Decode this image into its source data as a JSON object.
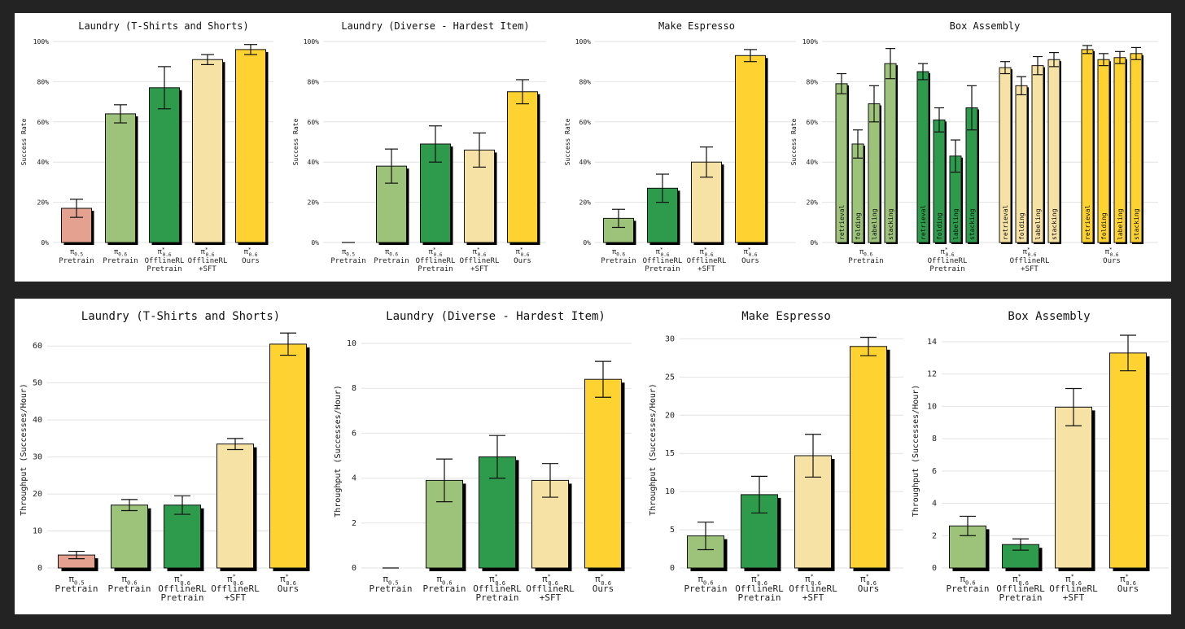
{
  "colors": {
    "pi05_pretrain": "#e4a190",
    "pi06_pretrain": "#9dc27a",
    "offline_rl_pretrain": "#2e9a4c",
    "offline_rl_sft": "#f7e2a5",
    "ours": "#fdd231"
  },
  "chart_data": [
    {
      "type": "bar",
      "title": "Laundry (T-Shirts and Shorts)",
      "ylabel": "Success Rate",
      "ylim": [
        0,
        100
      ],
      "yticks": [
        "0%",
        "20%",
        "40%",
        "60%",
        "80%",
        "100%"
      ],
      "grid": true,
      "bars": [
        {
          "label": "Pretrain",
          "model": "π0.5",
          "value": 17,
          "err": 4.5,
          "color": "pi05_pretrain"
        },
        {
          "label": "Pretrain",
          "model": "π0.6",
          "value": 64,
          "err": 4.5,
          "color": "pi06_pretrain"
        },
        {
          "label": "OfflineRL Pretrain",
          "model": "π*0.6",
          "value": 77,
          "err": 10.5,
          "color": "offline_rl_pretrain"
        },
        {
          "label": "OfflineRL +SFT",
          "model": "π*0.6",
          "value": 91,
          "err": 2.5,
          "color": "offline_rl_sft"
        },
        {
          "label": "Ours",
          "model": "π*0.6",
          "value": 96,
          "err": 2.5,
          "color": "ours"
        }
      ]
    },
    {
      "type": "bar",
      "title": "Laundry (Diverse - Hardest Item)",
      "ylabel": "Success Rate",
      "ylim": [
        0,
        100
      ],
      "yticks": [
        "0%",
        "20%",
        "40%",
        "60%",
        "80%",
        "100%"
      ],
      "grid": true,
      "bars": [
        {
          "label": "Pretrain",
          "model": "π0.5",
          "value": 0,
          "err": 0,
          "color": "pi05_pretrain"
        },
        {
          "label": "Pretrain",
          "model": "π0.6",
          "value": 38,
          "err": 8.5,
          "color": "pi06_pretrain"
        },
        {
          "label": "OfflineRL Pretrain",
          "model": "π*0.6",
          "value": 49,
          "err": 9,
          "color": "offline_rl_pretrain"
        },
        {
          "label": "OfflineRL +SFT",
          "model": "π*0.6",
          "value": 46,
          "err": 8.5,
          "color": "offline_rl_sft"
        },
        {
          "label": "Ours",
          "model": "π*0.6",
          "value": 75,
          "err": 6,
          "color": "ours"
        }
      ]
    },
    {
      "type": "bar",
      "title": "Make Espresso",
      "ylabel": "Success Rate",
      "ylim": [
        0,
        100
      ],
      "yticks": [
        "0%",
        "20%",
        "40%",
        "60%",
        "80%",
        "100%"
      ],
      "grid": true,
      "bars": [
        {
          "label": "Pretrain",
          "model": "π0.6",
          "value": 12,
          "err": 4.5,
          "color": "pi06_pretrain"
        },
        {
          "label": "OfflineRL Pretrain",
          "model": "π*0.6",
          "value": 27,
          "err": 7,
          "color": "offline_rl_pretrain"
        },
        {
          "label": "OfflineRL +SFT",
          "model": "π*0.6",
          "value": 40,
          "err": 7.5,
          "color": "offline_rl_sft"
        },
        {
          "label": "Ours",
          "model": "π*0.6",
          "value": 93,
          "err": 3,
          "color": "ours"
        }
      ]
    },
    {
      "type": "bar",
      "title": "Box Assembly",
      "ylabel": "Success Rate",
      "ylim": [
        0,
        100
      ],
      "yticks": [
        "0%",
        "20%",
        "40%",
        "60%",
        "80%",
        "100%"
      ],
      "grid": true,
      "groups": [
        {
          "label": "Pretrain",
          "model": "π0.6",
          "color": "pi06_pretrain",
          "bars": [
            {
              "stage": "retrieval",
              "value": 79,
              "err": 5
            },
            {
              "stage": "folding",
              "value": 49,
              "err": 7
            },
            {
              "stage": "labeling",
              "value": 69,
              "err": 9
            },
            {
              "stage": "stacking",
              "value": 89,
              "err": 7.5
            }
          ]
        },
        {
          "label": "OfflineRL Pretrain",
          "model": "π*0.6",
          "color": "offline_rl_pretrain",
          "bars": [
            {
              "stage": "retrieval",
              "value": 85,
              "err": 4
            },
            {
              "stage": "folding",
              "value": 61,
              "err": 6
            },
            {
              "stage": "labeling",
              "value": 43,
              "err": 8
            },
            {
              "stage": "stacking",
              "value": 67,
              "err": 11
            }
          ]
        },
        {
          "label": "OfflineRL +SFT",
          "model": "π*0.6",
          "color": "offline_rl_sft",
          "bars": [
            {
              "stage": "retrieval",
              "value": 87,
              "err": 3
            },
            {
              "stage": "folding",
              "value": 78,
              "err": 4.5
            },
            {
              "stage": "labeling",
              "value": 88,
              "err": 4.5
            },
            {
              "stage": "stacking",
              "value": 91,
              "err": 3.5
            }
          ]
        },
        {
          "label": "Ours",
          "model": "π*0.6",
          "color": "ours",
          "bars": [
            {
              "stage": "retrieval",
              "value": 96,
              "err": 2
            },
            {
              "stage": "folding",
              "value": 91,
              "err": 3
            },
            {
              "stage": "labeling",
              "value": 92,
              "err": 3
            },
            {
              "stage": "stacking",
              "value": 94,
              "err": 3
            }
          ]
        }
      ]
    },
    {
      "type": "bar",
      "title": "Laundry (T-Shirts and Shorts)",
      "ylabel": "Throughput (Successes/Hour)",
      "ylim": [
        0,
        64
      ],
      "yticks": [
        "0",
        "10",
        "20",
        "30",
        "40",
        "50",
        "60"
      ],
      "grid": true,
      "bars": [
        {
          "label": "Pretrain",
          "model": "π0.5",
          "value": 3.5,
          "err": 1,
          "color": "pi05_pretrain"
        },
        {
          "label": "Pretrain",
          "model": "π0.6",
          "value": 17,
          "err": 1.5,
          "color": "pi06_pretrain"
        },
        {
          "label": "OfflineRL Pretrain",
          "model": "π*0.6",
          "value": 17,
          "err": 2.5,
          "color": "offline_rl_pretrain"
        },
        {
          "label": "OfflineRL +SFT",
          "model": "π*0.6",
          "value": 33.5,
          "err": 1.5,
          "color": "offline_rl_sft"
        },
        {
          "label": "Ours",
          "model": "π*0.6",
          "value": 60.5,
          "err": 3,
          "color": "ours"
        }
      ]
    },
    {
      "type": "bar",
      "title": "Laundry (Diverse - Hardest Item)",
      "ylabel": "Throughput (Successes/Hour)",
      "ylim": [
        0,
        10.4
      ],
      "yticks": [
        "0",
        "2",
        "4",
        "6",
        "8",
        "10"
      ],
      "grid": true,
      "bars": [
        {
          "label": "Pretrain",
          "model": "π0.5",
          "value": 0,
          "err": 0,
          "color": "pi05_pretrain"
        },
        {
          "label": "Pretrain",
          "model": "π0.6",
          "value": 3.9,
          "err": 0.95,
          "color": "pi06_pretrain"
        },
        {
          "label": "OfflineRL Pretrain",
          "model": "π*0.6",
          "value": 4.95,
          "err": 0.95,
          "color": "offline_rl_pretrain"
        },
        {
          "label": "OfflineRL +SFT",
          "model": "π*0.6",
          "value": 3.9,
          "err": 0.75,
          "color": "offline_rl_sft"
        },
        {
          "label": "Ours",
          "model": "π*0.6",
          "value": 8.4,
          "err": 0.8,
          "color": "ours"
        }
      ]
    },
    {
      "type": "bar",
      "title": "Make Espresso",
      "ylabel": "Throughput (Successes/Hour)",
      "ylim": [
        0,
        31
      ],
      "yticks": [
        "0",
        "5",
        "10",
        "15",
        "20",
        "25",
        "30"
      ],
      "grid": true,
      "bars": [
        {
          "label": "Pretrain",
          "model": "π0.6",
          "value": 4.2,
          "err": 1.8,
          "color": "pi06_pretrain"
        },
        {
          "label": "OfflineRL Pretrain",
          "model": "π*0.6",
          "value": 9.6,
          "err": 2.4,
          "color": "offline_rl_pretrain"
        },
        {
          "label": "OfflineRL +SFT",
          "model": "π*0.6",
          "value": 14.7,
          "err": 2.8,
          "color": "offline_rl_sft"
        },
        {
          "label": "Ours",
          "model": "π*0.6",
          "value": 29,
          "err": 1.2,
          "color": "ours"
        }
      ]
    },
    {
      "type": "bar",
      "title": "Box Assembly",
      "ylabel": "Throughput (Successes/Hour)",
      "ylim": [
        0,
        14.5
      ],
      "yticks": [
        "0",
        "2",
        "4",
        "6",
        "8",
        "10",
        "12",
        "14"
      ],
      "grid": true,
      "bars": [
        {
          "label": "Pretrain",
          "model": "π0.6",
          "value": 2.6,
          "err": 0.6,
          "color": "pi06_pretrain"
        },
        {
          "label": "OfflineRL Pretrain",
          "model": "π*0.6",
          "value": 1.45,
          "err": 0.35,
          "color": "offline_rl_pretrain"
        },
        {
          "label": "OfflineRL +SFT",
          "model": "π*0.6",
          "value": 9.95,
          "err": 1.15,
          "color": "offline_rl_sft"
        },
        {
          "label": "Ours",
          "model": "π*0.6",
          "value": 13.3,
          "err": 1.1,
          "color": "ours"
        }
      ]
    }
  ]
}
